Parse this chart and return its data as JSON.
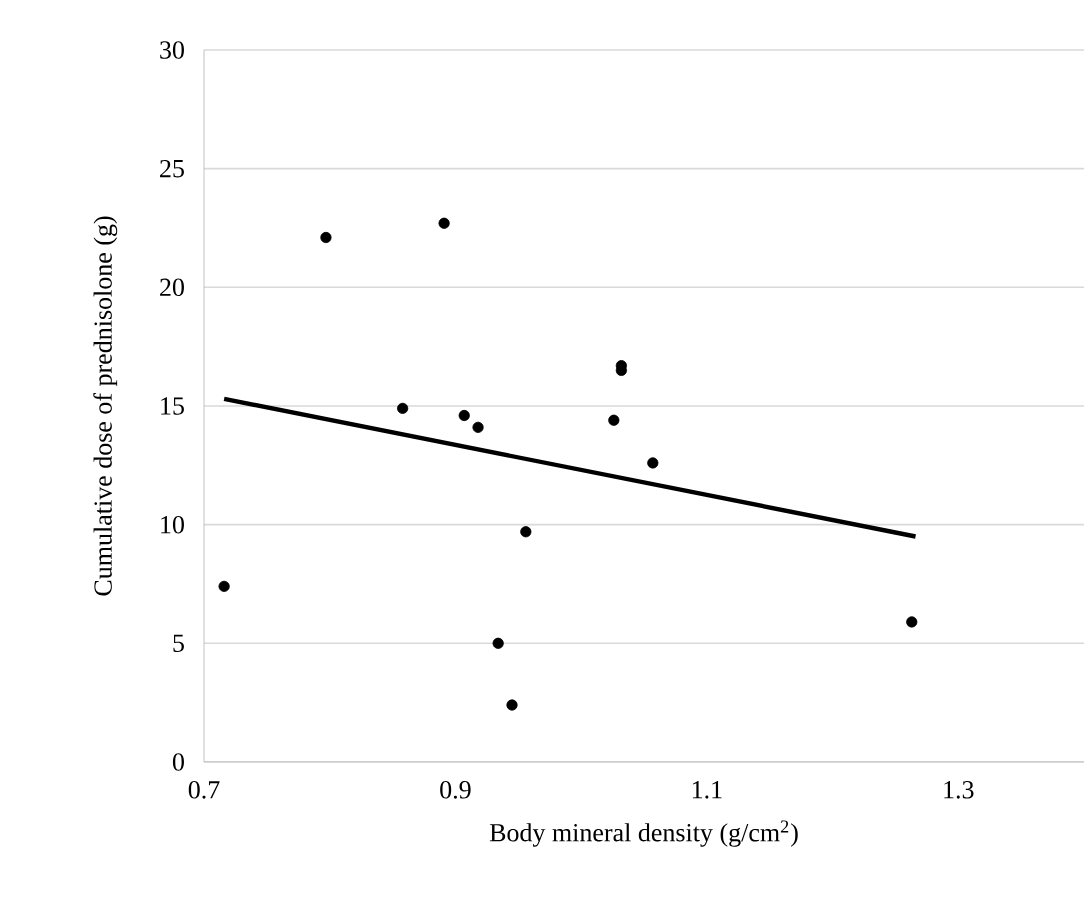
{
  "chart_data": {
    "type": "scatter",
    "xlabel": "Body mineral density  (g/cm$^{2}$)",
    "ylabel": "Cumulative  dose of prednisolone  (g)",
    "xlim": [
      0.7,
      1.4
    ],
    "xticks": [
      0.7,
      0.9,
      1.1,
      1.3
    ],
    "ylim": [
      0,
      30
    ],
    "yticks": [
      0,
      5,
      10,
      15,
      20,
      25,
      30
    ],
    "grid": "y",
    "series": [
      {
        "marker": "circle",
        "color": "#000000",
        "x": [
          0.716,
          0.797,
          0.891,
          0.858,
          0.907,
          0.918,
          1.026,
          1.032,
          1.032,
          1.057,
          0.956,
          0.934,
          0.945,
          1.263
        ],
        "values": [
          7.4,
          22.1,
          22.7,
          14.9,
          14.6,
          14.1,
          14.4,
          16.7,
          16.5,
          12.6,
          9.7,
          5.0,
          2.4,
          5.9
        ]
      },
      {
        "type": "line",
        "color": "#000000",
        "x": [
          0.716,
          1.266
        ],
        "values": [
          15.3,
          9.5
        ]
      }
    ]
  }
}
